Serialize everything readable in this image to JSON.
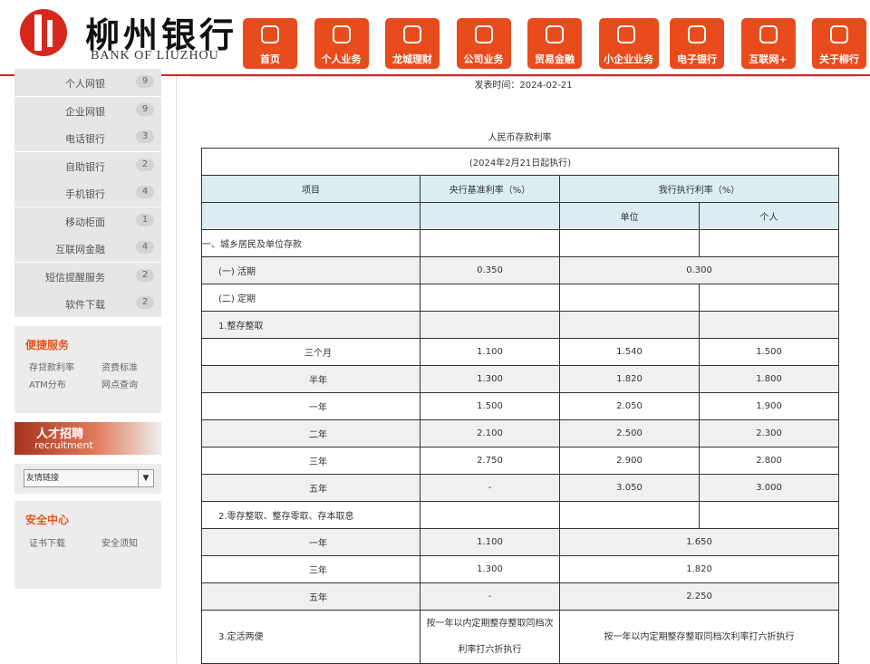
{
  "header": {
    "logo_cn": "柳州银行",
    "logo_en": "BANK OF LIUZHOU",
    "nav": [
      "首页",
      "个人业务",
      "龙城理财",
      "公司业务",
      "贸易金融",
      "小企业业务",
      "电子银行",
      "互联网+",
      "关于柳行"
    ]
  },
  "sidebar": {
    "menu": [
      {
        "name": "个人网银",
        "count": 9
      },
      {
        "name": "企业网银",
        "count": 9
      },
      {
        "name": "电话银行",
        "count": 3
      },
      {
        "name": "自助银行",
        "count": 2
      },
      {
        "name": "手机银行",
        "count": 4
      },
      {
        "name": "移动柜面",
        "count": 1
      },
      {
        "name": "互联网金融",
        "count": 4
      },
      {
        "name": "短信提醒服务",
        "count": 2
      },
      {
        "name": "软件下载",
        "count": 2
      }
    ],
    "quick": {
      "title": "便捷服务",
      "links": [
        "存贷款利率",
        "资费标准",
        "ATM分布",
        "网点查询"
      ]
    },
    "recruit": {
      "title": "人才招聘",
      "subtitle": "recruitment"
    },
    "friend_links": "友情链接",
    "security": {
      "title": "安全中心",
      "links": [
        "证书下载",
        "安全须知"
      ]
    }
  },
  "article": {
    "publish_time": "发表时间：2024-02-21",
    "title": "人民币存款利率",
    "table": {
      "caption": "(2024年2月21日起执行)",
      "header": {
        "item": "项目",
        "base": "央行基准利率（%）",
        "rate": "我行执行利率（%）",
        "unit": "单位",
        "personal": "个人"
      },
      "rows": [
        {
          "item": "一、城乡居民及单位存款"
        },
        {
          "item": "(一) 活期",
          "base": "0.350",
          "rate": "0.300"
        },
        {
          "item": "(二) 定期"
        },
        {
          "item": "1.整存整取"
        },
        {
          "item": "三个月",
          "base": "1.100",
          "unit": "1.540",
          "personal": "1.500"
        },
        {
          "item": "半年",
          "base": "1.300",
          "unit": "1.820",
          "personal": "1.800"
        },
        {
          "item": "一年",
          "base": "1.500",
          "unit": "2.050",
          "personal": "1.900"
        },
        {
          "item": "二年",
          "base": "2.100",
          "unit": "2.500",
          "personal": "2.300"
        },
        {
          "item": "三年",
          "base": "2.750",
          "unit": "2.900",
          "personal": "2.800"
        },
        {
          "item": "五年",
          "base": "-",
          "unit": "3.050",
          "personal": "3.000"
        },
        {
          "item": "2.零存整取、整存零取、存本取息"
        },
        {
          "item": "一年",
          "base": "1.100",
          "rate": "1.650"
        },
        {
          "item": "三年",
          "base": "1.300",
          "rate": "1.820"
        },
        {
          "item": "五年",
          "base": "-",
          "rate": "2.250"
        },
        {
          "item": "3.定活两便",
          "base": "按一年以内定期整存整取同档次利率打六折执行",
          "rate": "按一年以内定期整存整取同档次利率打六折执行"
        }
      ]
    }
  }
}
